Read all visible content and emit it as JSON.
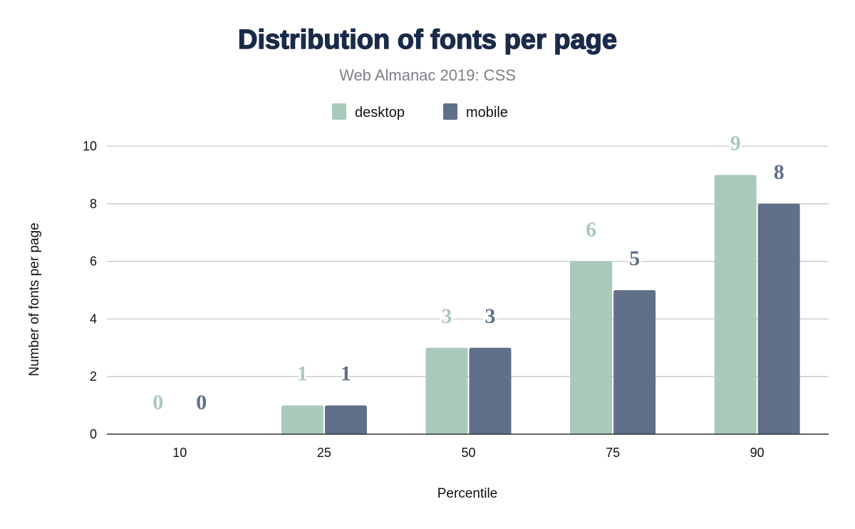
{
  "chart_data": {
    "type": "bar",
    "title": "Distribution of fonts per page",
    "subtitle": "Web Almanac 2019: CSS",
    "xlabel": "Percentile",
    "ylabel": "Number of fonts per page",
    "categories": [
      "10",
      "25",
      "50",
      "75",
      "90"
    ],
    "series": [
      {
        "name": "desktop",
        "values": [
          0,
          1,
          3,
          6,
          9
        ],
        "color": "#a8cabb"
      },
      {
        "name": "mobile",
        "values": [
          0,
          1,
          3,
          5,
          8
        ],
        "color": "#617089"
      }
    ],
    "ylim": [
      0,
      10
    ],
    "yticks": [
      "0",
      "2",
      "4",
      "6",
      "8",
      "10"
    ],
    "grid": true,
    "legend_position": "top",
    "title_color": "#1a2b4a"
  }
}
